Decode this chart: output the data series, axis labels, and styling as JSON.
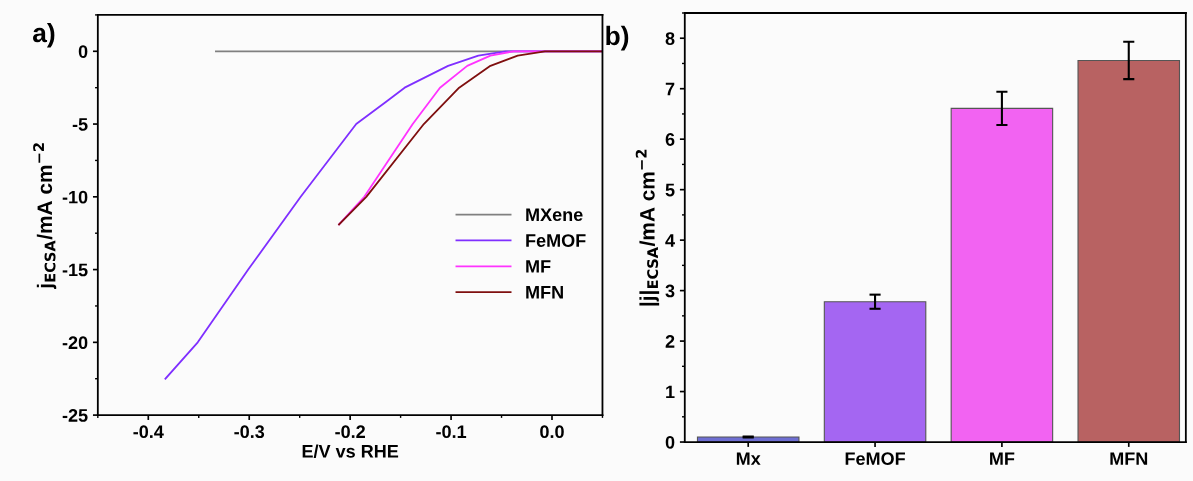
{
  "chart_data": [
    {
      "type": "line",
      "xlabel": "E/V vs RHE",
      "ylabel": "j$_{ECSA}$/mA cm$^{−2}$",
      "annotations": [
        "a)"
      ],
      "xlim": [
        -0.45,
        0.05
      ],
      "ylim": [
        -25,
        2.5
      ],
      "xticks": [
        -0.4,
        -0.3,
        -0.2,
        -0.1,
        {
          "value": 0.0,
          "label": "0.0"
        }
      ],
      "yticks": [
        -25,
        -20,
        -15,
        -10,
        -5,
        0
      ],
      "legend": "center right",
      "grid": false,
      "line_style": "solid",
      "marker": "none",
      "series": [
        {
          "name": "MXene",
          "color": "#808080",
          "x": [
            -0.333,
            0.05
          ],
          "values": [
            0,
            0
          ]
        },
        {
          "name": "FeMOF",
          "color": "#7f2fff",
          "x": [
            -0.383,
            -0.351,
            -0.301,
            -0.249,
            -0.194,
            -0.165,
            -0.146,
            -0.103,
            -0.073,
            -0.046,
            0.05
          ],
          "values": [
            -22.5,
            -20,
            -15,
            -10,
            -5,
            -3.5,
            -2.5,
            -1,
            -0.3,
            0,
            0
          ]
        },
        {
          "name": "MF",
          "color": "#ff33ff",
          "x": [
            -0.211,
            -0.186,
            -0.138,
            -0.111,
            -0.084,
            -0.061,
            -0.038,
            0.05
          ],
          "values": [
            -11.9,
            -10,
            -5,
            -2.5,
            -1,
            -0.3,
            0,
            0
          ]
        },
        {
          "name": "MFN",
          "color": "#7f0f0f",
          "x": [
            -0.211,
            -0.184,
            -0.127,
            -0.092,
            -0.061,
            -0.034,
            -0.007,
            0.05
          ],
          "values": [
            -11.9,
            -10,
            -5,
            -2.5,
            -1,
            -0.3,
            0,
            0
          ]
        }
      ]
    },
    {
      "type": "bar",
      "ylabel": "|j|$_{ECSA}$/mA cm$^{−2}$",
      "annotations": [
        "b)"
      ],
      "categories": [
        "Mx",
        "FeMOF",
        "MF",
        "MFN"
      ],
      "ylim": [
        0,
        8.5
      ],
      "yticks": [
        0,
        1,
        2,
        3,
        4,
        5,
        6,
        7,
        8
      ],
      "grid": false,
      "values": [
        0.1,
        2.78,
        6.61,
        7.56
      ],
      "errors": [
        0.01,
        0.14,
        0.33,
        0.37
      ],
      "colors": [
        "#6e6ed2",
        "#a466f2",
        "#f263f2",
        "#b86262"
      ]
    }
  ]
}
